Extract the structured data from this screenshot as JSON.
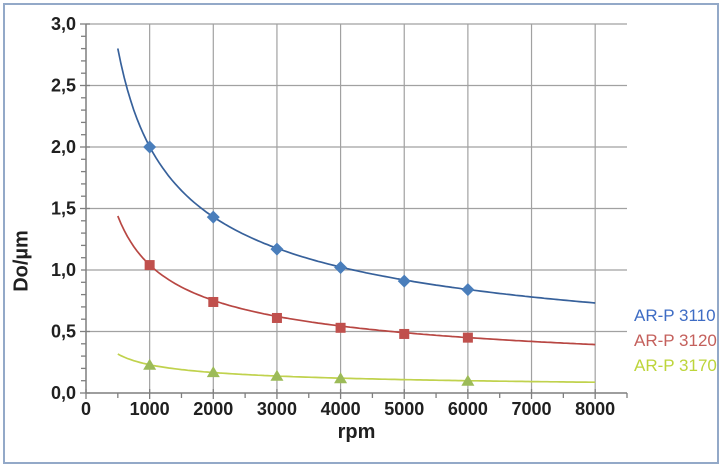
{
  "window": {
    "background": "#ffffff",
    "frame_border_color": "#93a9c8"
  },
  "chart_data": {
    "type": "scatter",
    "title": "",
    "xlabel": "rpm",
    "ylabel": "Do/µm",
    "xlim": [
      0,
      8500
    ],
    "ylim": [
      0.0,
      3.0
    ],
    "x_minor_step": 500,
    "y_minor_step": 0.1,
    "grid": "major-both",
    "grid_color": "#a1a1a1",
    "axis_color": "#7f7f7f",
    "tick_label_color": "#202020",
    "legend_position": "right-outside",
    "x_ticks": [
      {
        "value": 0,
        "label": "0"
      },
      {
        "value": 1000,
        "label": "1000"
      },
      {
        "value": 2000,
        "label": "2000"
      },
      {
        "value": 3000,
        "label": "3000"
      },
      {
        "value": 4000,
        "label": "4000"
      },
      {
        "value": 5000,
        "label": "5000"
      },
      {
        "value": 6000,
        "label": "6000"
      },
      {
        "value": 7000,
        "label": "7000"
      },
      {
        "value": 8000,
        "label": "8000"
      }
    ],
    "y_ticks": [
      {
        "value": 0.0,
        "label": "0,0"
      },
      {
        "value": 0.5,
        "label": "0,5"
      },
      {
        "value": 1.0,
        "label": "1,0"
      },
      {
        "value": 1.5,
        "label": "1,5"
      },
      {
        "value": 2.0,
        "label": "2,0"
      },
      {
        "value": 2.5,
        "label": "2,5"
      },
      {
        "value": 3.0,
        "label": "3,0"
      }
    ],
    "series": [
      {
        "name": "AR-P 3110",
        "marker": "diamond",
        "marker_color": "#4a7ebb",
        "line_color": "#37619b",
        "label_color": "#3e6cc4",
        "points": [
          [
            1000,
            2.0
          ],
          [
            2000,
            1.43
          ],
          [
            3000,
            1.17
          ],
          [
            4000,
            1.02
          ],
          [
            5000,
            0.91
          ],
          [
            6000,
            0.84
          ]
        ],
        "trendline": {
          "type": "power",
          "a": 56.7,
          "b": -0.484,
          "x_start": 500,
          "x_end": 8000
        }
      },
      {
        "name": "AR-P 3120",
        "marker": "square",
        "marker_color": "#c0504d",
        "line_color": "#b84743",
        "label_color": "#c4605c",
        "points": [
          [
            1000,
            1.04
          ],
          [
            2000,
            0.74
          ],
          [
            3000,
            0.61
          ],
          [
            4000,
            0.53
          ],
          [
            5000,
            0.48
          ],
          [
            6000,
            0.45
          ]
        ],
        "trendline": {
          "type": "power",
          "a": 26.3,
          "b": -0.4675,
          "x_start": 500,
          "x_end": 8000
        }
      },
      {
        "name": "AR-P 3170",
        "marker": "triangle",
        "marker_color": "#9cbb58",
        "line_color": "#c0d24d",
        "label_color": "#bdd53a",
        "points": [
          [
            1000,
            0.23
          ],
          [
            2000,
            0.17
          ],
          [
            3000,
            0.14
          ],
          [
            4000,
            0.12
          ],
          [
            6000,
            0.1
          ]
        ],
        "trendline": {
          "type": "power",
          "a": 5.7,
          "b": -0.4648,
          "x_start": 500,
          "x_end": 8000
        }
      }
    ]
  }
}
